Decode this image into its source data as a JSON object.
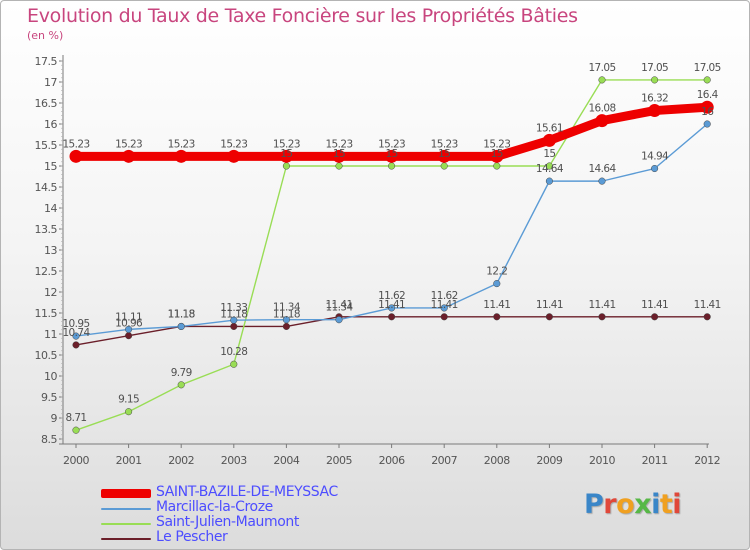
{
  "title": "Evolution du Taux de Taxe Foncière sur les Propriétés Bâties",
  "unit": "(en %)",
  "logo_text": "Proxiti",
  "chart_data": {
    "type": "line",
    "title": "Evolution du Taux de Taxe Foncière sur les Propriétés Bâties",
    "ylabel": "(en %)",
    "xlabel": "",
    "x": [
      "2000",
      "2001",
      "2002",
      "2003",
      "2004",
      "2005",
      "2006",
      "2007",
      "2008",
      "2009",
      "2010",
      "2011",
      "2012"
    ],
    "ylim": [
      8.5,
      17.5
    ],
    "yticks": [
      "8.5",
      "9",
      "9.5",
      "10",
      "10.5",
      "11",
      "11.5",
      "12",
      "12.5",
      "13",
      "13.5",
      "14",
      "14.5",
      "15",
      "15.5",
      "16",
      "16.5",
      "17",
      "17.5"
    ],
    "grid": false,
    "legend_position": "bottom-left",
    "series": [
      {
        "name": "SAINT-BAZILE-DE-MEYSSAC",
        "color": "#ee0000",
        "values": [
          15.23,
          15.23,
          15.23,
          15.23,
          15.23,
          15.23,
          15.23,
          15.23,
          15.23,
          15.61,
          16.08,
          16.32,
          16.4
        ],
        "labels": [
          "15.23",
          "15.23",
          "15.23",
          "15.23",
          "15.23",
          "15.23",
          "15.23",
          "15.23",
          "15.23",
          "15.61",
          "16.08",
          "16.32",
          "16.4"
        ]
      },
      {
        "name": "Marcillac-la-Croze",
        "color": "#5b9bd5",
        "values": [
          10.95,
          11.11,
          11.18,
          11.33,
          11.34,
          11.34,
          11.62,
          11.62,
          12.2,
          14.64,
          14.64,
          14.94,
          16
        ],
        "labels": [
          "10.95",
          "11.11",
          "11.18",
          "11.33",
          "11.34",
          "11.34",
          "11.62",
          "11.62",
          "12.2",
          "14.64",
          "14.64",
          "14.94",
          "16"
        ]
      },
      {
        "name": "Saint-Julien-Maumont",
        "color": "#99dd55",
        "values": [
          8.71,
          9.15,
          9.79,
          10.28,
          15,
          15,
          15,
          15,
          15,
          15,
          17.05,
          17.05,
          17.05
        ],
        "labels": [
          "8.71",
          "9.15",
          "9.79",
          "10.28",
          "15",
          "15",
          "15",
          "15",
          "15",
          "15",
          "17.05",
          "17.05",
          "17.05"
        ]
      },
      {
        "name": "Le Pescher",
        "color": "#6b1f2a",
        "values": [
          10.74,
          10.96,
          11.18,
          11.18,
          11.18,
          11.41,
          11.41,
          11.41,
          11.41,
          11.41,
          11.41,
          11.41,
          11.41
        ],
        "labels": [
          "10.74",
          "10.96",
          "11.18",
          "11.18",
          "11.18",
          "11.41",
          "11.41",
          "11.41",
          "11.41",
          "11.41",
          "11.41",
          "11.41",
          "11.41"
        ]
      }
    ]
  }
}
